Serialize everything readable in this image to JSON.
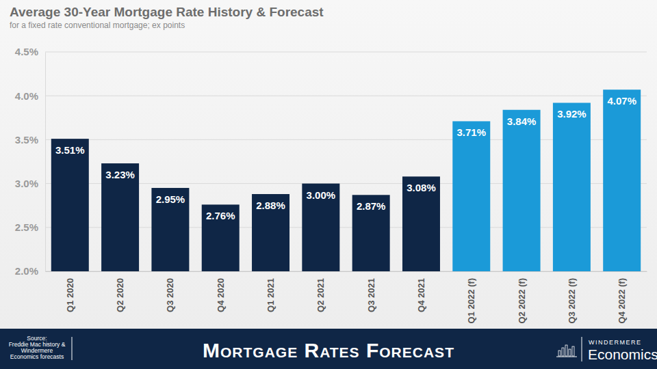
{
  "chart_data": {
    "type": "bar",
    "title": "Average 30-Year Mortgage Rate History & Forecast",
    "subtitle": "for a fixed rate conventional mortgage; ex points",
    "categories": [
      "Q1 2020",
      "Q2 2020",
      "Q3 2020",
      "Q4 2020",
      "Q1 2021",
      "Q2 2021",
      "Q3 2021",
      "Q4 2021",
      "Q1 2022 (f)",
      "Q2 2022 (f)",
      "Q3 2022 (f)",
      "Q4 2022 (f)"
    ],
    "values": [
      3.51,
      3.23,
      2.95,
      2.76,
      2.88,
      3.0,
      2.87,
      3.08,
      3.71,
      3.84,
      3.92,
      4.07
    ],
    "value_labels": [
      "3.51%",
      "3.23%",
      "2.95%",
      "2.76%",
      "2.88%",
      "3.00%",
      "2.87%",
      "3.08%",
      "3.71%",
      "3.84%",
      "3.92%",
      "4.07%"
    ],
    "colors": [
      "#0f2646",
      "#0f2646",
      "#0f2646",
      "#0f2646",
      "#0f2646",
      "#0f2646",
      "#0f2646",
      "#0f2646",
      "#1b9ad8",
      "#1b9ad8",
      "#1b9ad8",
      "#1b9ad8"
    ],
    "ylim": [
      2.0,
      4.5
    ],
    "yticks": [
      {
        "value": 2.0,
        "label": "2.0%"
      },
      {
        "value": 2.5,
        "label": "2.5%"
      },
      {
        "value": 3.0,
        "label": "3.0%"
      },
      {
        "value": 3.5,
        "label": "3.5%"
      },
      {
        "value": 4.0,
        "label": "4.0%"
      },
      {
        "value": 4.5,
        "label": "4.5%"
      }
    ],
    "grid": true,
    "data_labels": true
  },
  "footer": {
    "source_lines": [
      "Source:",
      "Freddie Mac history &",
      "Windermere",
      "Economics forecasts"
    ],
    "banner": "Mortgage Rates Forecast",
    "brand": "WINDERMERE",
    "brand_sub": "Economics"
  }
}
